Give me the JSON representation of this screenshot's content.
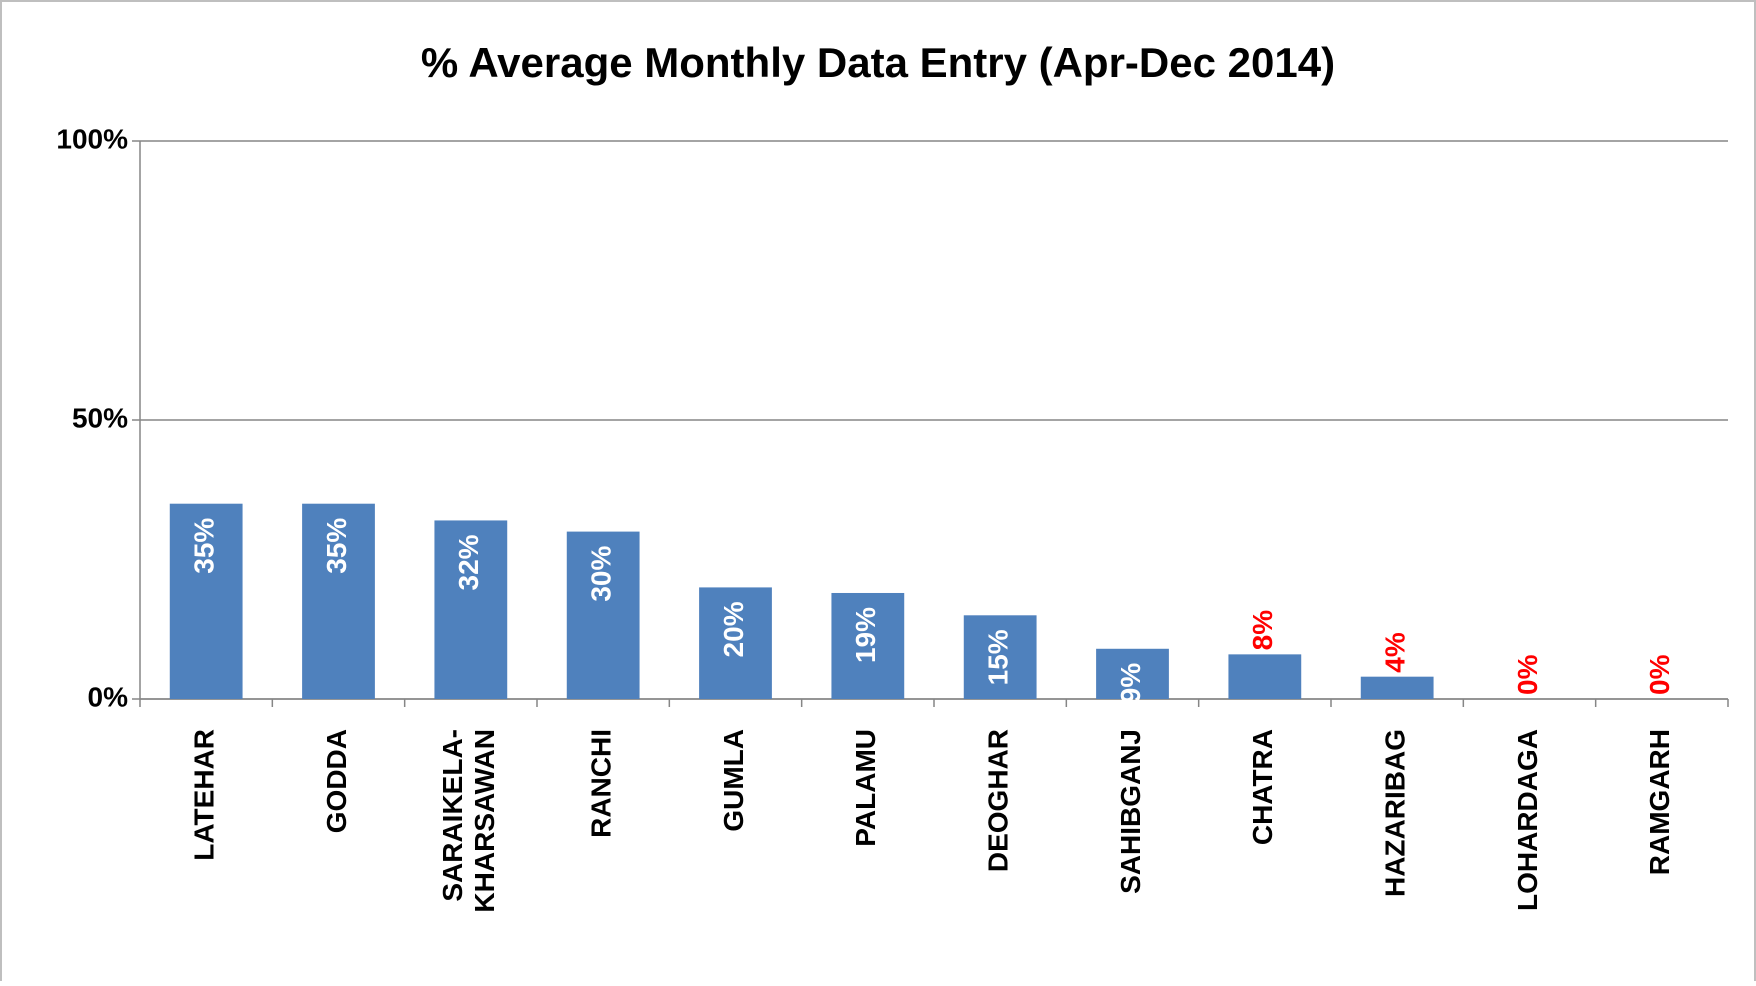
{
  "chart_data": {
    "type": "bar",
    "title": "% Average Monthly Data Entry (Apr-Dec 2014)",
    "categories": [
      "LATEHAR",
      "GODDA",
      "SARAIKELA-KHARSAWAN",
      "RANCHI",
      "GUMLA",
      "PALAMU",
      "DEOGHAR",
      "SAHIBGANJ",
      "CHATRA",
      "HAZARIBAG",
      "LOHARDAGA",
      "RAMGARH"
    ],
    "values": [
      35,
      35,
      32,
      30,
      20,
      19,
      15,
      9,
      8,
      4,
      0,
      0
    ],
    "value_labels": [
      "35%",
      "35%",
      "32%",
      "30%",
      "20%",
      "19%",
      "15%",
      "9%",
      "8%",
      "4%",
      "0%",
      "0%"
    ],
    "value_label_colors": [
      "#ffffff",
      "#ffffff",
      "#ffffff",
      "#ffffff",
      "#ffffff",
      "#ffffff",
      "#ffffff",
      "#ffffff",
      "#ff0000",
      "#ff0000",
      "#ff0000",
      "#ff0000"
    ],
    "color": "#4f81bd",
    "ylim": [
      0,
      100
    ],
    "yticks": [
      {
        "value": 0,
        "label": "0%"
      },
      {
        "value": 50,
        "label": "50%"
      },
      {
        "value": 100,
        "label": "100%"
      }
    ],
    "grid": true
  }
}
